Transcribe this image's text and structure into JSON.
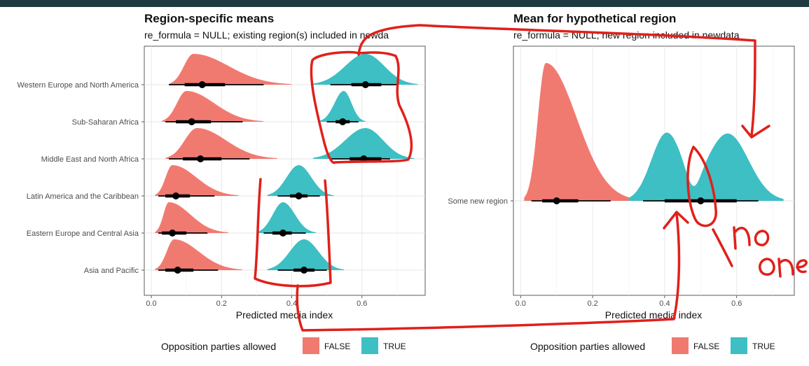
{
  "colors": {
    "false": "#F17A70",
    "true": "#3DBFC4",
    "annotation": "#E0201B"
  },
  "legend": {
    "title": "Opposition parties allowed",
    "labels": [
      "FALSE",
      "TRUE"
    ]
  },
  "annotation_text": "no one",
  "chart_data": [
    {
      "type": "halfeye",
      "title": "Region-specific means",
      "subtitle": "re_formula = NULL; existing region(s) included in newda",
      "xlabel": "Predicted media index",
      "xlim": [
        -0.02,
        0.78
      ],
      "xticks": [
        0.0,
        0.2,
        0.4,
        0.6
      ],
      "xtick_labels": [
        "0.0",
        "0.2",
        "0.4",
        "0.6"
      ],
      "categories": [
        "Western Europe and North America",
        "Sub-Saharan Africa",
        "Middle East and North Africa",
        "Latin America and the Caribbean",
        "Eastern Europe and Central Asia",
        "Asia and Pacific"
      ],
      "series": [
        {
          "name": "FALSE",
          "median": [
            0.145,
            0.115,
            0.14,
            0.07,
            0.06,
            0.075
          ],
          "mode": [
            0.12,
            0.1,
            0.13,
            0.06,
            0.05,
            0.065
          ],
          "range": [
            [
              0.05,
              0.4
            ],
            [
              0.03,
              0.32
            ],
            [
              0.04,
              0.36
            ],
            [
              0.01,
              0.25
            ],
            [
              0.01,
              0.22
            ],
            [
              0.01,
              0.26
            ]
          ],
          "interval_66": [
            [
              0.095,
              0.21
            ],
            [
              0.07,
              0.17
            ],
            [
              0.09,
              0.2
            ],
            [
              0.04,
              0.11
            ],
            [
              0.03,
              0.1
            ],
            [
              0.04,
              0.12
            ]
          ],
          "interval_95": [
            [
              0.05,
              0.32
            ],
            [
              0.04,
              0.26
            ],
            [
              0.05,
              0.28
            ],
            [
              0.02,
              0.18
            ],
            [
              0.02,
              0.16
            ],
            [
              0.02,
              0.19
            ]
          ]
        },
        {
          "name": "TRUE",
          "median": [
            0.61,
            0.545,
            0.605,
            0.42,
            0.375,
            0.435
          ],
          "mode": [
            0.61,
            0.548,
            0.61,
            0.42,
            0.375,
            0.435
          ],
          "range": [
            [
              0.46,
              0.76
            ],
            [
              0.48,
              0.61
            ],
            [
              0.46,
              0.75
            ],
            [
              0.33,
              0.52
            ],
            [
              0.3,
              0.47
            ],
            [
              0.33,
              0.55
            ]
          ],
          "interval_66": [
            [
              0.57,
              0.655
            ],
            [
              0.525,
              0.565
            ],
            [
              0.565,
              0.655
            ],
            [
              0.395,
              0.445
            ],
            [
              0.345,
              0.4
            ],
            [
              0.405,
              0.465
            ]
          ],
          "interval_95": [
            [
              0.51,
              0.7
            ],
            [
              0.5,
              0.59
            ],
            [
              0.51,
              0.68
            ],
            [
              0.36,
              0.48
            ],
            [
              0.32,
              0.44
            ],
            [
              0.36,
              0.5
            ]
          ]
        }
      ]
    },
    {
      "type": "halfeye",
      "title": "Mean for hypothetical region",
      "subtitle": "re_formula = NULL; new region included in newdata",
      "xlabel": "Predicted media index",
      "xlim": [
        -0.02,
        0.76
      ],
      "xticks": [
        0.0,
        0.2,
        0.4,
        0.6
      ],
      "xtick_labels": [
        "0.0",
        "0.2",
        "0.4",
        "0.6"
      ],
      "categories": [
        "Some new region"
      ],
      "series": [
        {
          "name": "FALSE",
          "median": [
            0.1
          ],
          "interval_66": [
            [
              0.06,
              0.16
            ]
          ],
          "interval_95": [
            [
              0.03,
              0.25
            ]
          ],
          "range": [
            [
              0.01,
              0.35
            ]
          ]
        },
        {
          "name": "TRUE",
          "median": [
            0.5
          ],
          "interval_66": [
            [
              0.4,
              0.6
            ]
          ],
          "interval_95": [
            [
              0.34,
              0.66
            ]
          ],
          "range": [
            [
              0.3,
              0.73
            ]
          ]
        }
      ]
    }
  ]
}
